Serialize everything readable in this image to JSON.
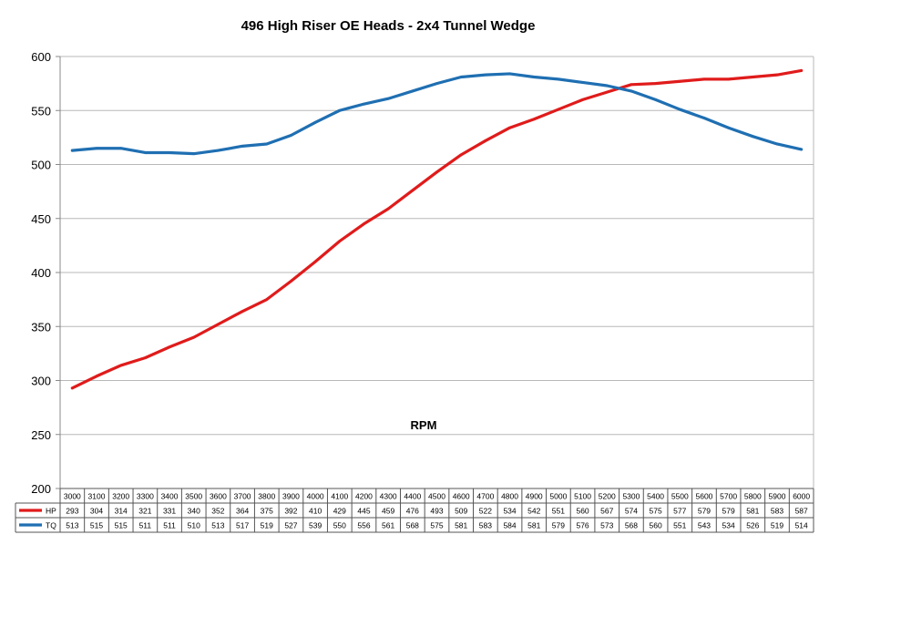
{
  "chart_data": {
    "type": "line",
    "title": "496 High Riser OE Heads - 2x4  Tunnel Wedge",
    "annotation": "RPM",
    "xlabel": "",
    "ylabel": "",
    "ylim": [
      200,
      600
    ],
    "yticks": [
      200,
      250,
      300,
      350,
      400,
      450,
      500,
      550,
      600
    ],
    "grid": true,
    "legend": "data-table-left",
    "x": [
      3000,
      3100,
      3200,
      3300,
      3400,
      3500,
      3600,
      3700,
      3800,
      3900,
      4000,
      4100,
      4200,
      4300,
      4400,
      4500,
      4600,
      4700,
      4800,
      4900,
      5000,
      5100,
      5200,
      5300,
      5400,
      5500,
      5600,
      5700,
      5800,
      5900,
      6000
    ],
    "series": [
      {
        "name": "HP",
        "color": "#e01b1b",
        "values": [
          293,
          304,
          314,
          321,
          331,
          340,
          352,
          364,
          375,
          392,
          410,
          429,
          445,
          459,
          476,
          493,
          509,
          522,
          534,
          542,
          551,
          560,
          567,
          574,
          575,
          577,
          579,
          579,
          581,
          583,
          587
        ]
      },
      {
        "name": "TQ",
        "color": "#1f6fb2",
        "values": [
          513,
          515,
          515,
          511,
          511,
          510,
          513,
          517,
          519,
          527,
          539,
          550,
          556,
          561,
          568,
          575,
          581,
          583,
          584,
          581,
          579,
          576,
          573,
          568,
          560,
          551,
          543,
          534,
          526,
          519,
          514
        ]
      }
    ]
  }
}
